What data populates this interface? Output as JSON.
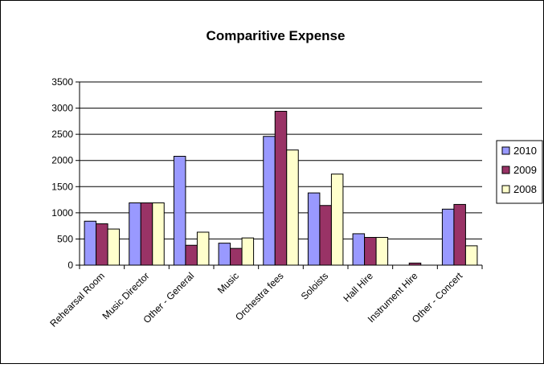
{
  "chart_data": {
    "type": "bar",
    "title": "Comparitive Expense",
    "xlabel": "",
    "ylabel": "",
    "categories": [
      "Rehearsal Room",
      "Music Director",
      "Other - General",
      "Music",
      "Orchestra fees",
      "Soloists",
      "Hall Hire",
      "Instrument Hire",
      "Other - Concert"
    ],
    "series": [
      {
        "name": "2010",
        "color": "#9999ff",
        "values": [
          840,
          1190,
          2080,
          420,
          2460,
          1380,
          600,
          0,
          1070
        ]
      },
      {
        "name": "2009",
        "color": "#993366",
        "values": [
          790,
          1190,
          380,
          320,
          2940,
          1140,
          530,
          40,
          1160
        ]
      },
      {
        "name": "2008",
        "color": "#ffffcc",
        "values": [
          690,
          1190,
          630,
          520,
          2200,
          1740,
          530,
          0,
          370
        ]
      }
    ],
    "ylim": [
      0,
      3500
    ],
    "yticks": [
      0,
      500,
      1000,
      1500,
      2000,
      2500,
      3000,
      3500
    ],
    "grid": true,
    "legend": "right"
  }
}
